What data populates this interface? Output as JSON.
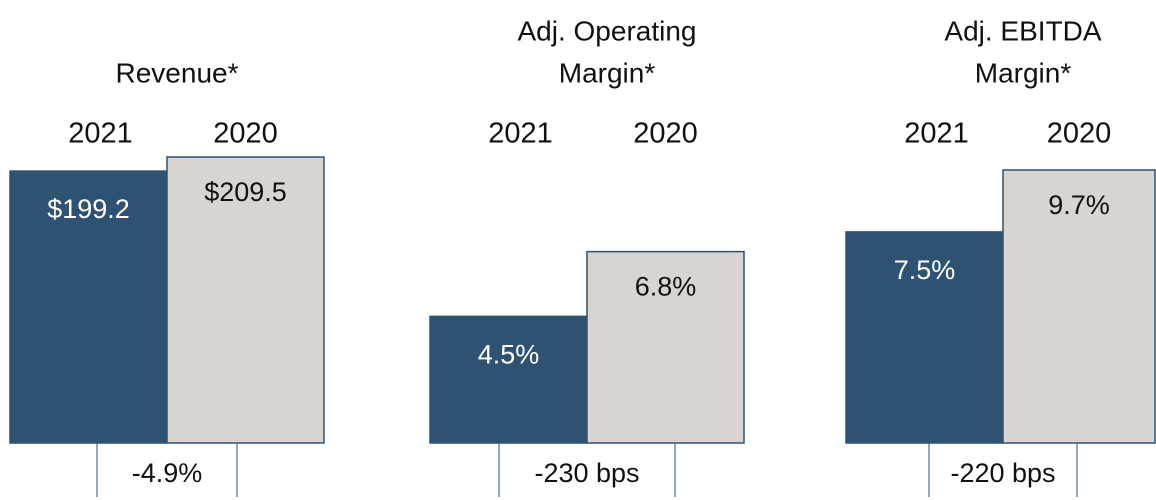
{
  "chart_data": [
    {
      "type": "bar",
      "title": [
        "Revenue*"
      ],
      "categories": [
        "2021",
        "2020"
      ],
      "values": [
        199.2,
        209.5
      ],
      "value_labels": [
        "$199.2",
        "$209.5"
      ],
      "colors": [
        "#2f5272",
        "#d9d4d2"
      ],
      "change": "-4.9%"
    },
    {
      "type": "bar",
      "title": [
        "Adj. Operating",
        "Margin*"
      ],
      "categories": [
        "2021",
        "2020"
      ],
      "values": [
        4.5,
        6.8
      ],
      "value_labels": [
        "4.5%",
        "6.8%"
      ],
      "colors": [
        "#2f5272",
        "#d9d4d2"
      ],
      "change": "-230 bps"
    },
    {
      "type": "bar",
      "title": [
        "Adj. EBITDA",
        "Margin*"
      ],
      "categories": [
        "2021",
        "2020"
      ],
      "values": [
        7.5,
        9.7
      ],
      "value_labels": [
        "7.5%",
        "9.7%"
      ],
      "colors": [
        "#2f5272",
        "#d9d4d2"
      ],
      "change": "-220 bps"
    }
  ]
}
